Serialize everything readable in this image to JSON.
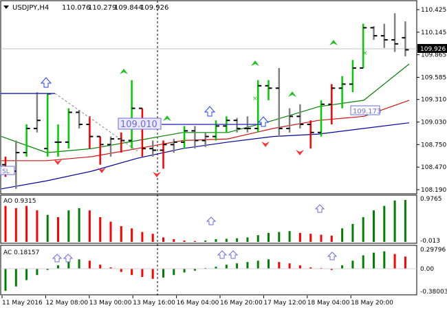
{
  "symbol_header": {
    "symbol": "USDJPY,H4",
    "open": "110.076",
    "high": "110.279",
    "low": "109.844",
    "close": "109.926"
  },
  "price_axis": {
    "ticks": [
      "110.425",
      "110.145",
      "109.865",
      "109.585",
      "109.310",
      "109.030",
      "108.750",
      "108.470",
      "108.190"
    ],
    "current_price": "109.926"
  },
  "annotations": {
    "hline_left_label": "109.010",
    "hline_right_label": "109.173",
    "left_edge_label": "SL"
  },
  "ao_panel": {
    "label": "AO 0.9315",
    "ticks": [
      "0.9765",
      "-0.013"
    ]
  },
  "ac_panel": {
    "label": "AC 0.18157",
    "ticks": [
      "0.29796",
      "0.00",
      "-0.38003"
    ]
  },
  "time_axis": {
    "labels": [
      "11 May 2016",
      "12 May 08:00",
      "13 May 00:00",
      "13 May 16:00",
      "16 May 04:00",
      "16 May 20:00",
      "17 May 12:00",
      "18 May 04:00",
      "18 May 20:00"
    ]
  },
  "colors": {
    "bull": "#00cc00",
    "bear": "#ff0000",
    "neutral_bar": "#808080",
    "ao_up": "#008000",
    "ao_down": "#ff0000",
    "ma_slow": "#0000a0",
    "ma_mid": "#d01010",
    "ma_fast": "#008000",
    "fractal_up": "#1f40ff",
    "fractal_down": "#ff3030",
    "annotation": "#6a6adc"
  },
  "chart_data": [
    {
      "type": "ohlc",
      "title": "USDJPY,H4",
      "ylim": [
        108.19,
        110.425
      ],
      "price_bars": [
        {
          "t": "11 May 2016",
          "o": 108.5,
          "h": 108.6,
          "l": 108.35,
          "c": 108.42,
          "dir": "down"
        },
        {
          "o": 108.42,
          "h": 108.8,
          "l": 108.2,
          "c": 108.65,
          "dir": "neutral"
        },
        {
          "o": 108.65,
          "h": 109.0,
          "l": 108.6,
          "c": 108.95,
          "dir": "up"
        },
        {
          "o": 108.95,
          "h": 109.4,
          "l": 108.9,
          "c": 109.05,
          "dir": "neutral"
        },
        {
          "o": 108.7,
          "h": 109.38,
          "l": 108.6,
          "c": 109.38,
          "dir": "up"
        },
        {
          "t": "12 May 08:00",
          "o": 108.78,
          "h": 109.0,
          "l": 108.6,
          "c": 108.78,
          "dir": "up"
        },
        {
          "o": 108.78,
          "h": 109.2,
          "l": 108.7,
          "c": 109.15,
          "dir": "up"
        },
        {
          "o": 109.15,
          "h": 109.18,
          "l": 108.95,
          "c": 109.0,
          "dir": "neutral"
        },
        {
          "o": 109.0,
          "h": 109.1,
          "l": 108.7,
          "c": 108.85,
          "dir": "down"
        },
        {
          "o": 108.85,
          "h": 108.85,
          "l": 108.5,
          "c": 108.75,
          "dir": "down"
        },
        {
          "t": "13 May 00:00",
          "o": 108.75,
          "h": 108.85,
          "l": 108.6,
          "c": 108.82,
          "dir": "neutral"
        },
        {
          "o": 108.82,
          "h": 108.9,
          "l": 108.65,
          "c": 108.8,
          "dir": "down"
        },
        {
          "o": 108.8,
          "h": 109.55,
          "l": 108.7,
          "c": 109.2,
          "dir": "up"
        },
        {
          "o": 109.2,
          "h": 109.2,
          "l": 108.6,
          "c": 108.7,
          "dir": "down"
        },
        {
          "o": 108.7,
          "h": 108.8,
          "l": 108.6,
          "c": 108.68,
          "dir": "neutral"
        },
        {
          "t": "13 May 16:00",
          "o": 108.68,
          "h": 108.8,
          "l": 108.45,
          "c": 108.75,
          "dir": "down"
        },
        {
          "o": 108.75,
          "h": 108.82,
          "l": 108.65,
          "c": 108.78,
          "dir": "neutral"
        },
        {
          "o": 108.78,
          "h": 108.98,
          "l": 108.7,
          "c": 108.92,
          "dir": "up"
        },
        {
          "o": 108.92,
          "h": 108.98,
          "l": 108.7,
          "c": 108.8,
          "dir": "neutral"
        },
        {
          "o": 108.8,
          "h": 108.9,
          "l": 108.72,
          "c": 108.85,
          "dir": "neutral"
        },
        {
          "t": "16 May 04:00",
          "o": 108.85,
          "h": 109.05,
          "l": 108.8,
          "c": 108.98,
          "dir": "up"
        },
        {
          "o": 108.98,
          "h": 109.1,
          "l": 108.9,
          "c": 109.05,
          "dir": "up"
        },
        {
          "o": 109.05,
          "h": 109.08,
          "l": 108.9,
          "c": 108.95,
          "dir": "neutral"
        },
        {
          "o": 108.95,
          "h": 109.1,
          "l": 108.9,
          "c": 108.95,
          "dir": "neutral"
        },
        {
          "o": 108.95,
          "h": 109.55,
          "l": 108.9,
          "c": 109.48,
          "dir": "up"
        },
        {
          "t": "16 May 20:00",
          "o": 109.48,
          "h": 109.55,
          "l": 109.3,
          "c": 109.45,
          "dir": "up"
        },
        {
          "o": 109.45,
          "h": 109.7,
          "l": 108.85,
          "c": 108.95,
          "dir": "neutral"
        },
        {
          "o": 108.95,
          "h": 109.2,
          "l": 108.9,
          "c": 109.1,
          "dir": "neutral"
        },
        {
          "o": 109.1,
          "h": 109.25,
          "l": 108.95,
          "c": 109.0,
          "dir": "neutral"
        },
        {
          "o": 109.0,
          "h": 109.05,
          "l": 108.7,
          "c": 108.9,
          "dir": "down"
        },
        {
          "t": "17 May 12:00",
          "o": 108.9,
          "h": 109.3,
          "l": 108.85,
          "c": 109.25,
          "dir": "up"
        },
        {
          "o": 109.25,
          "h": 109.5,
          "l": 109.0,
          "c": 109.45,
          "dir": "down"
        },
        {
          "o": 109.45,
          "h": 109.6,
          "l": 109.2,
          "c": 109.5,
          "dir": "up"
        },
        {
          "o": 109.5,
          "h": 109.8,
          "l": 109.4,
          "c": 109.7,
          "dir": "up"
        },
        {
          "t": "18 May 04:00",
          "o": 109.7,
          "h": 110.25,
          "l": 109.7,
          "c": 110.2,
          "dir": "up"
        },
        {
          "o": 110.2,
          "h": 110.22,
          "l": 110.05,
          "c": 110.1,
          "dir": "neutral"
        },
        {
          "o": 110.1,
          "h": 110.25,
          "l": 109.95,
          "c": 110.05,
          "dir": "neutral"
        },
        {
          "t": "18 May 20:00",
          "o": 110.05,
          "h": 110.38,
          "l": 109.9,
          "c": 110.0,
          "dir": "neutral"
        },
        {
          "o": 110.076,
          "h": 110.279,
          "l": 109.844,
          "c": 109.926,
          "dir": "neutral"
        }
      ],
      "moving_averages": [
        {
          "color_key": "ma_slow",
          "points": [
            108.2,
            108.3,
            108.42,
            108.58,
            108.7,
            108.78,
            108.85,
            108.88,
            108.95,
            109.02
          ]
        },
        {
          "color_key": "ma_mid",
          "points": [
            108.55,
            108.55,
            108.6,
            108.7,
            108.8,
            108.82,
            108.95,
            109.05,
            109.1,
            109.3
          ]
        },
        {
          "color_key": "ma_fast",
          "points": [
            108.85,
            108.65,
            108.7,
            108.8,
            108.9,
            108.9,
            109.05,
            109.22,
            109.3,
            109.75
          ]
        }
      ]
    },
    {
      "type": "bar",
      "title": "AO 0.9315",
      "ylim": [
        -0.013,
        0.9765
      ],
      "values": [
        0.8,
        0.75,
        0.8,
        0.7,
        0.6,
        0.55,
        0.7,
        0.75,
        0.7,
        0.55,
        0.45,
        0.35,
        0.3,
        0.22,
        0.18,
        0.1,
        0.06,
        0.03,
        0.02,
        0.03,
        0.06,
        0.07,
        0.08,
        0.1,
        0.15,
        0.2,
        0.22,
        0.24,
        0.2,
        0.18,
        0.16,
        0.14,
        0.3,
        0.4,
        0.55,
        0.7,
        0.8,
        0.92,
        0.9315
      ],
      "colors": [
        "down",
        "down",
        "down",
        "down",
        "up",
        "down",
        "up",
        "up",
        "down",
        "down",
        "down",
        "down",
        "down",
        "down",
        "down",
        "down",
        "down",
        "down",
        "down",
        "up",
        "up",
        "up",
        "up",
        "up",
        "up",
        "up",
        "up",
        "up",
        "down",
        "down",
        "down",
        "down",
        "up",
        "up",
        "up",
        "up",
        "up",
        "up",
        "up"
      ]
    },
    {
      "type": "bar",
      "title": "AC 0.18157",
      "ylim": [
        -0.38003,
        0.29796
      ],
      "values": [
        -0.35,
        -0.28,
        -0.18,
        -0.1,
        -0.02,
        0.05,
        0.1,
        0.14,
        0.12,
        0.06,
        0.02,
        -0.05,
        -0.1,
        -0.13,
        -0.16,
        -0.14,
        -0.1,
        -0.06,
        -0.03,
        0.0,
        0.03,
        0.06,
        0.08,
        0.1,
        0.12,
        0.14,
        0.1,
        0.08,
        0.05,
        0.02,
        0.0,
        -0.02,
        0.05,
        0.12,
        0.2,
        0.24,
        0.26,
        0.22,
        0.18157
      ],
      "colors": [
        "up",
        "up",
        "up",
        "up",
        "up",
        "up",
        "up",
        "up",
        "down",
        "down",
        "down",
        "down",
        "down",
        "down",
        "down",
        "up",
        "up",
        "up",
        "up",
        "up",
        "up",
        "up",
        "up",
        "up",
        "up",
        "up",
        "down",
        "down",
        "down",
        "down",
        "down",
        "down",
        "up",
        "up",
        "up",
        "up",
        "up",
        "down",
        "down"
      ]
    }
  ]
}
